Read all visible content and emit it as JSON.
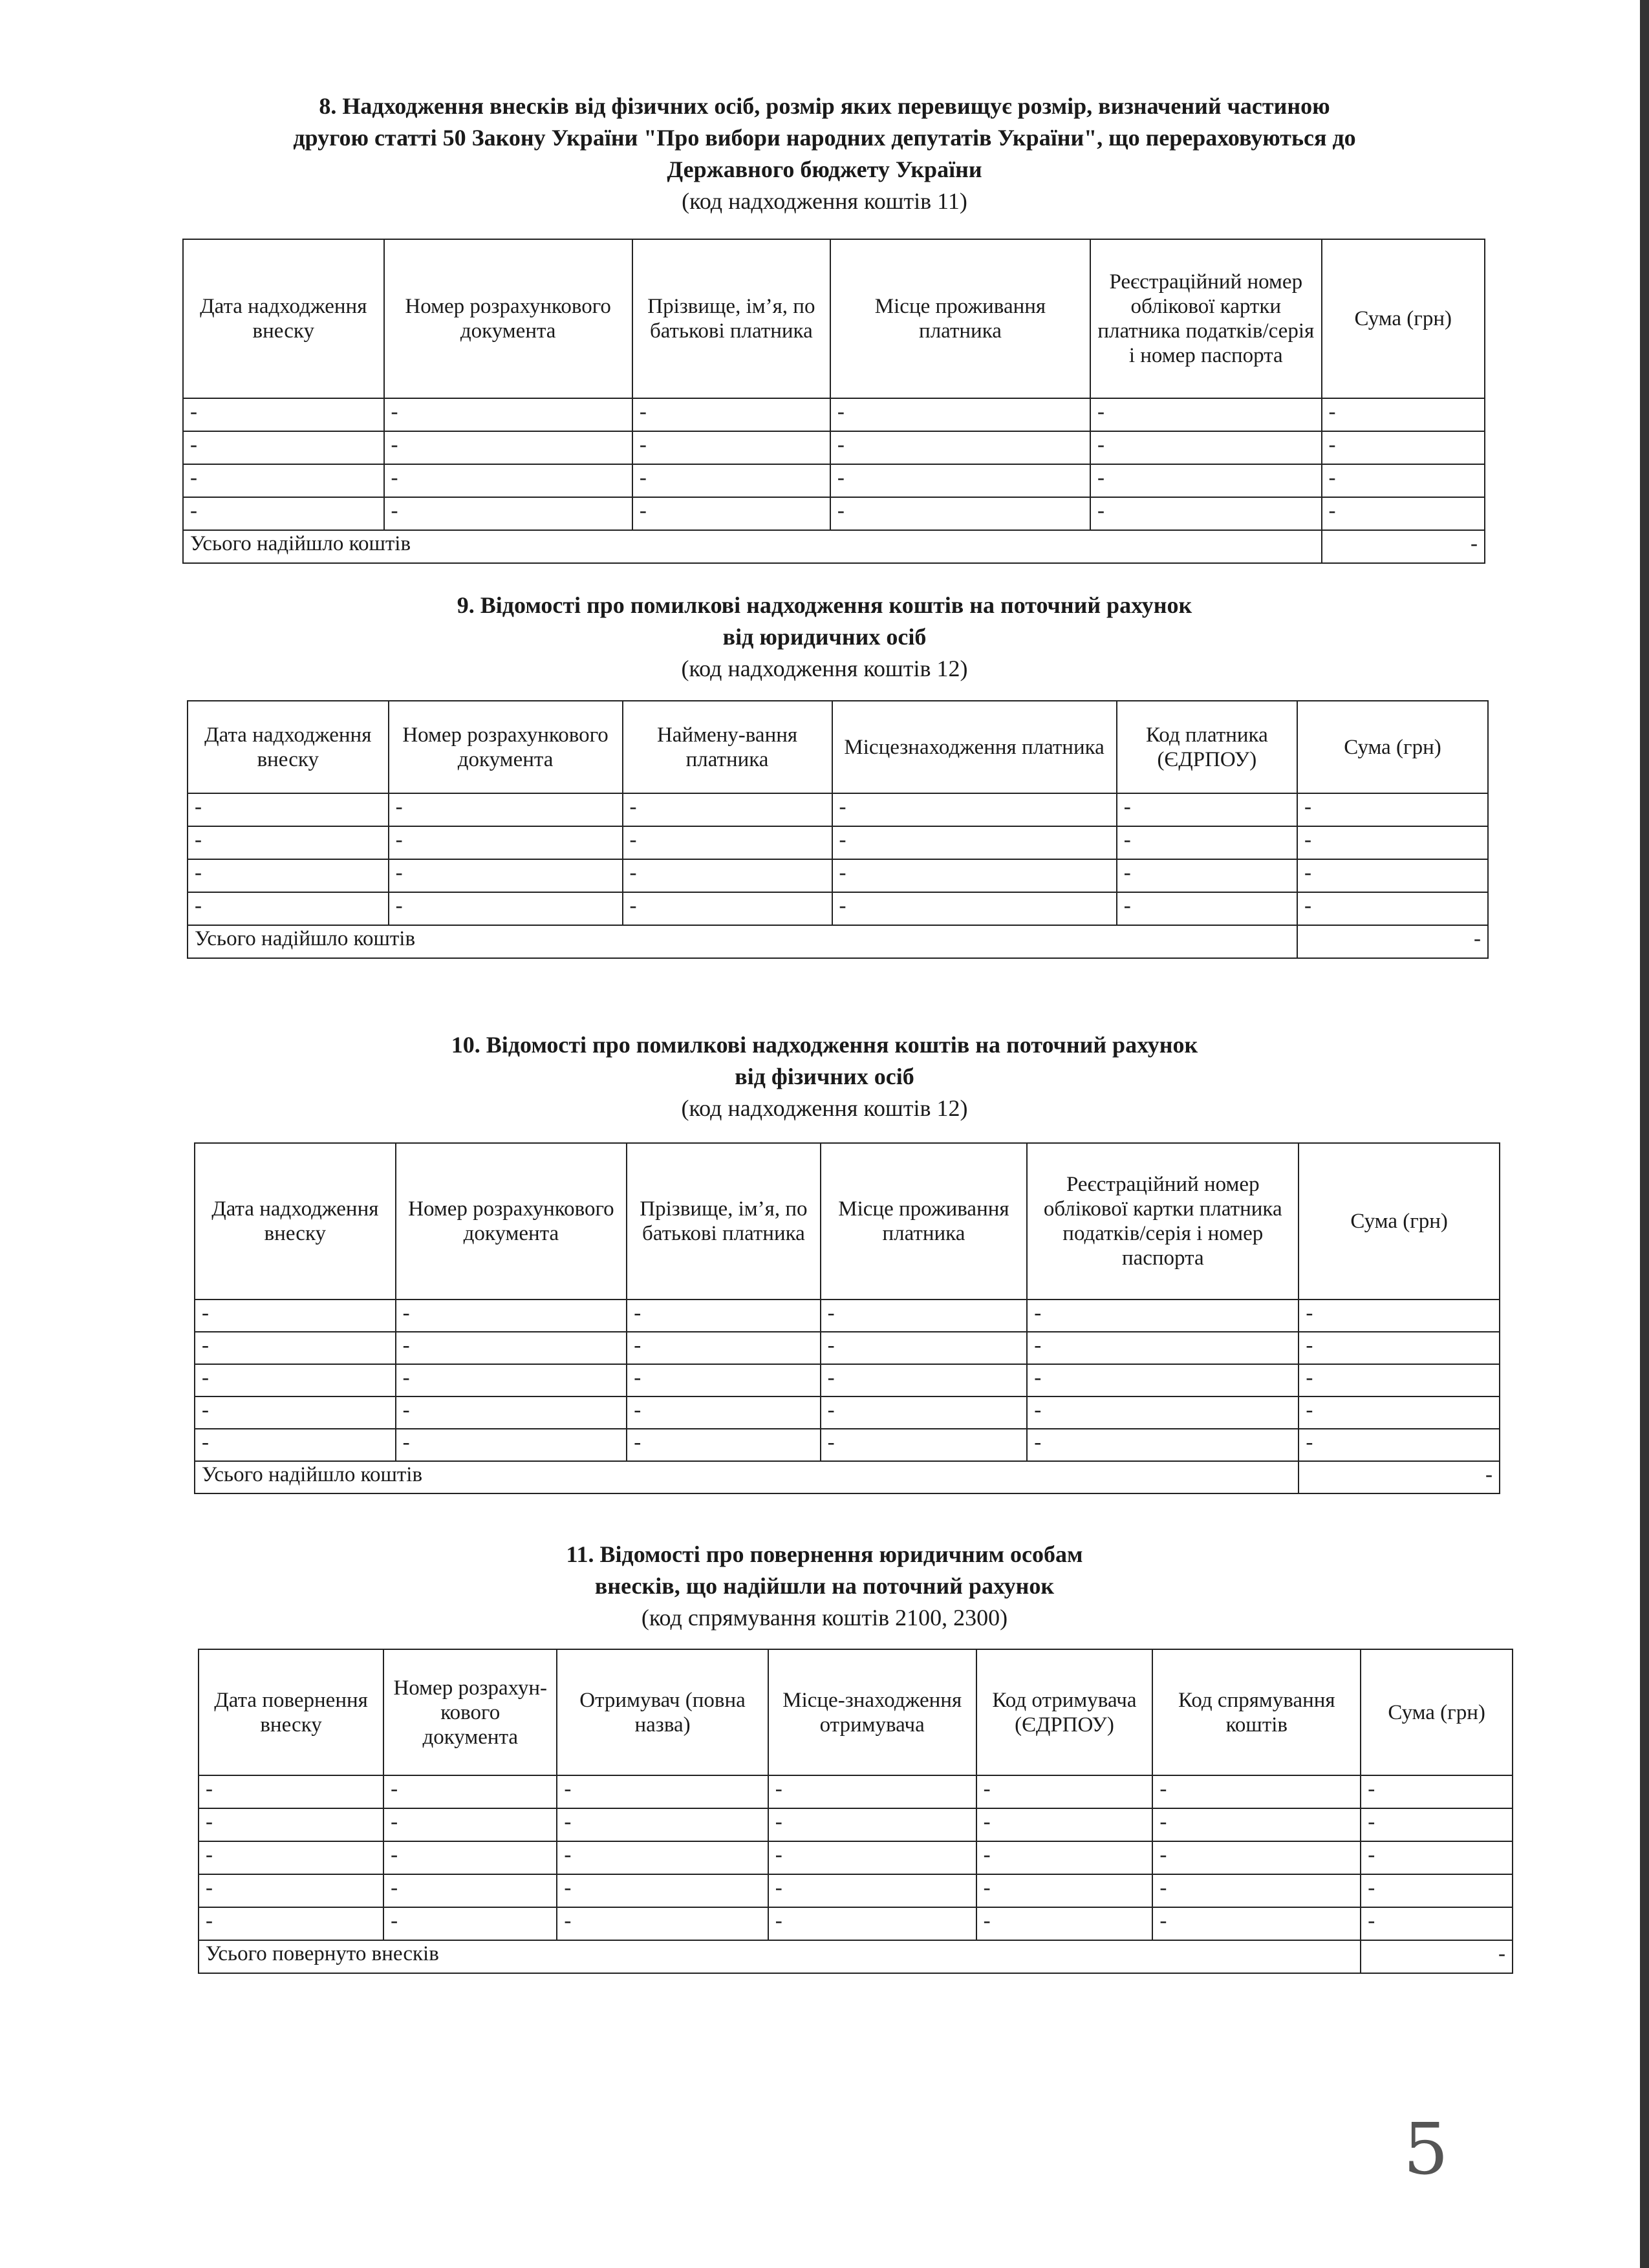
{
  "sections": [
    {
      "title_lines": [
        "8. Надходження внесків від фізичних осіб, розмір яких перевищує розмір, визначений частиною",
        "другою статті 50 Закону України \"Про вибори народних депутатів України\", що перераховуються до",
        "Державного бюджету України"
      ],
      "subtitle": "(код надходження коштів 11)",
      "headers": [
        "Дата надходження внеску",
        "Номер розрахункового документа",
        "Прізвище, ім’я, по батькові платника",
        "Місце проживання платника",
        "Реєстраційний номер облікової картки платника податків/серія і номер паспорта",
        "Сума (грн)"
      ],
      "rows": [
        [
          "-",
          "-",
          "-",
          "-",
          "-",
          "-"
        ],
        [
          "-",
          "-",
          "-",
          "-",
          "-",
          "-"
        ],
        [
          "-",
          "-",
          "-",
          "-",
          "-",
          "-"
        ],
        [
          "-",
          "-",
          "-",
          "-",
          "-",
          "-"
        ]
      ],
      "total_label": "Усього надійшло коштів",
      "total_value": "-"
    },
    {
      "title_lines": [
        "9. Відомості про помилкові надходження коштів на поточний рахунок",
        "від юридичних осіб"
      ],
      "subtitle": "(код надходження коштів 12)",
      "headers": [
        "Дата надходження внеску",
        "Номер розрахункового документа",
        "Наймену-вання платника",
        "Місцезнаходження платника",
        "Код платника (ЄДРПОУ)",
        "Сума (грн)"
      ],
      "rows": [
        [
          "-",
          "-",
          "-",
          "-",
          "-",
          "-"
        ],
        [
          "-",
          "-",
          "-",
          "-",
          "-",
          "-"
        ],
        [
          "-",
          "-",
          "-",
          "-",
          "-",
          "-"
        ],
        [
          "-",
          "-",
          "-",
          "-",
          "-",
          "-"
        ]
      ],
      "total_label": "Усього надійшло коштів",
      "total_value": "-"
    },
    {
      "title_lines": [
        "10. Відомості про помилкові надходження коштів на поточний рахунок",
        "від фізичних осіб"
      ],
      "subtitle": "(код надходження коштів 12)",
      "headers": [
        "Дата надходження внеску",
        "Номер розрахункового документа",
        "Прізвище, ім’я, по батькові платника",
        "Місце проживання платника",
        "Реєстраційний номер облікової картки платника податків/серія і номер паспорта",
        "Сума (грн)"
      ],
      "rows": [
        [
          "-",
          "-",
          "-",
          "-",
          "-",
          "-"
        ],
        [
          "-",
          "-",
          "-",
          "-",
          "-",
          "-"
        ],
        [
          "-",
          "-",
          "-",
          "-",
          "-",
          "-"
        ],
        [
          "-",
          "-",
          "-",
          "-",
          "-",
          "-"
        ],
        [
          "-",
          "-",
          "-",
          "-",
          "-",
          "-"
        ]
      ],
      "total_label": "Усього надійшло коштів",
      "total_value": "-"
    },
    {
      "title_lines": [
        "11. Відомості про повернення юридичним особам",
        "внесків, що надійшли на поточний рахунок"
      ],
      "subtitle": "(код спрямування коштів 2100, 2300)",
      "headers": [
        "Дата повернення внеску",
        "Номер розрахун-кового документа",
        "Отримувач (повна назва)",
        "Місце-знаходження отримувача",
        "Код отримувача (ЄДРПОУ)",
        "Код спрямування коштів",
        "Сума (грн)"
      ],
      "rows": [
        [
          "-",
          "-",
          "-",
          "-",
          "-",
          "-",
          "-"
        ],
        [
          "-",
          "-",
          "-",
          "-",
          "-",
          "-",
          "-"
        ],
        [
          "-",
          "-",
          "-",
          "-",
          "-",
          "-",
          "-"
        ],
        [
          "-",
          "-",
          "-",
          "-",
          "-",
          "-",
          "-"
        ],
        [
          "-",
          "-",
          "-",
          "-",
          "-",
          "-",
          "-"
        ]
      ],
      "total_label": "Усього повернуто внесків",
      "total_value": "-"
    }
  ],
  "page_number": "5"
}
